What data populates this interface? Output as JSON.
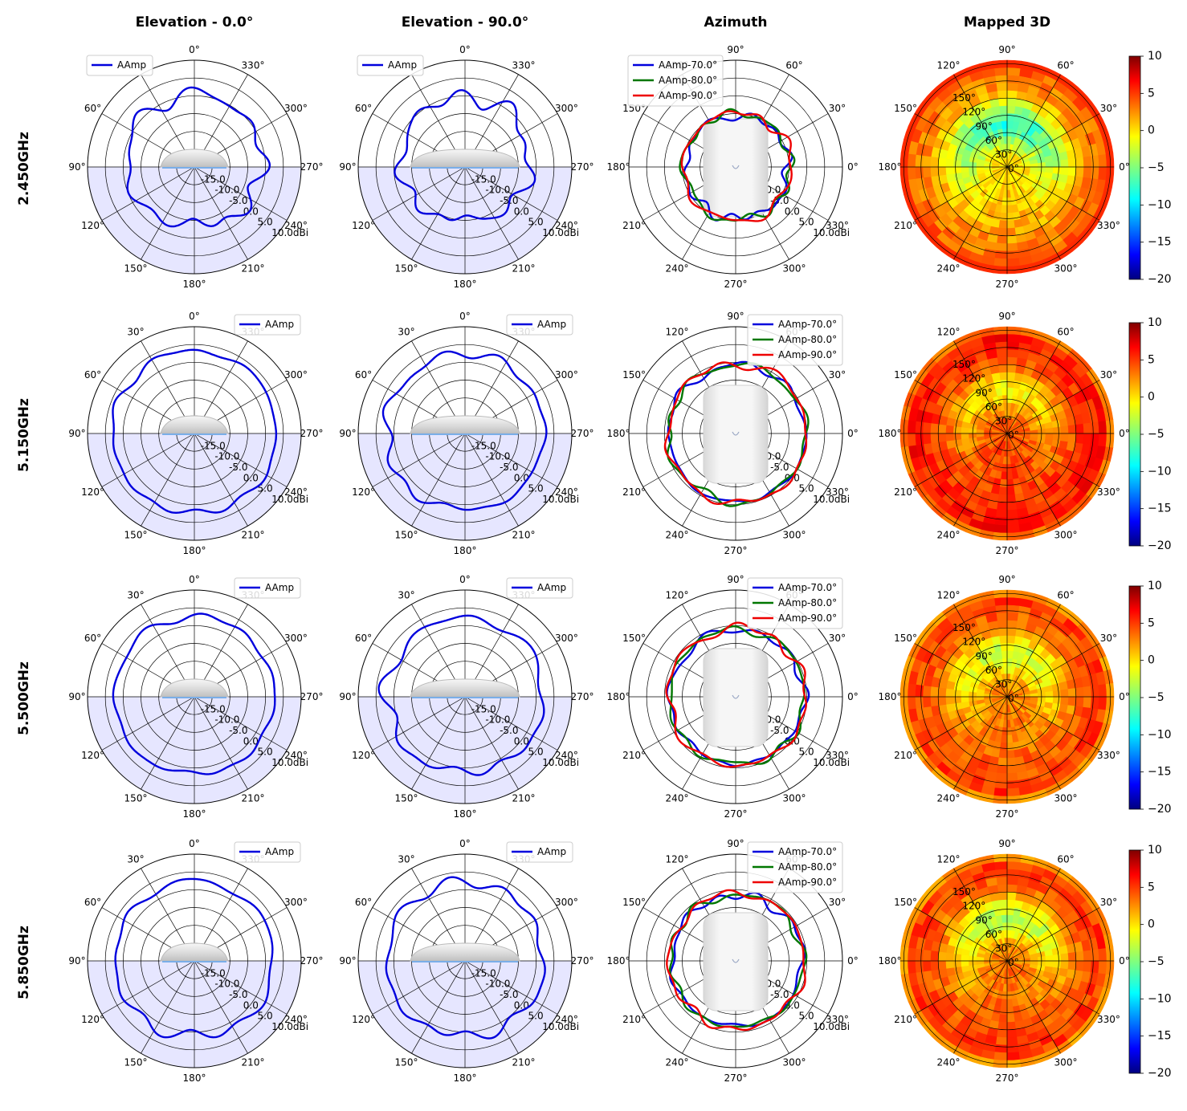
{
  "chart_data": {
    "type": "polar",
    "column_titles": [
      "Elevation - 0.0°",
      "Elevation - 90.0°",
      "Azimuth",
      "Mapped 3D"
    ],
    "row_titles": [
      "2.450GHz",
      "5.150GHz",
      "5.500GHz",
      "5.850GHz"
    ],
    "units": "dBi",
    "radial_range_dbi": [
      -20,
      10
    ],
    "radial_tick_labels": [
      "-15.0",
      "-10.0",
      "-5.0",
      "0.0",
      "5.0",
      "10.0dBi"
    ],
    "angle_tick_labels_elevation": [
      "0°",
      "30°",
      "60°",
      "90°",
      "120°",
      "150°",
      "180°",
      "210°",
      "240°",
      "270°",
      "300°",
      "330°"
    ],
    "angle_tick_labels_azimuth": [
      "0°",
      "30°",
      "60°",
      "90°",
      "120°",
      "150°",
      "180°",
      "210°",
      "240°",
      "270°",
      "300°",
      "330°"
    ],
    "elevation_series_name": "AAmp",
    "azimuth_series_names": [
      "AAmp-70.0°",
      "AAmp-80.0°",
      "AAmp-90.0°"
    ],
    "series_colors": {
      "AAmp": "#0000dd",
      "AAmp-70.0°": "#0000dd",
      "AAmp-80.0°": "#007700",
      "AAmp-90.0°": "#ee0000"
    },
    "shaded_half_color": "#e6e6ff",
    "heatmap": {
      "colormap": "jet",
      "colorbar_range": [
        -20,
        10
      ],
      "colorbar_tick_labels": [
        "10",
        "5",
        "0",
        "−5",
        "−10",
        "−15",
        "−20"
      ],
      "inner_radial_labels": [
        "150°",
        "120°",
        "90°",
        "60°",
        "30°",
        "0°"
      ]
    },
    "rows": [
      {
        "frequency": "2.450GHz",
        "elevation_0": {
          "mean_dbi": -1,
          "asymmetry_dbi": 2.5,
          "ripple_dbi": 1.6,
          "back_null_dbi": -5
        },
        "elevation_90": {
          "mean_dbi": -2,
          "asymmetry_dbi": 3,
          "ripple_dbi": 2.0,
          "back_null_dbi": -6
        },
        "azimuth": {
          "mean_dbi": [
            -5.5,
            -5.0,
            -4.8
          ],
          "ripple_dbi": 1.2
        },
        "mapped_3d": {
          "base_dbi": 0,
          "rim_dbi": 4,
          "low_spot_dbi": -9
        }
      },
      {
        "frequency": "5.150GHz",
        "elevation_0": {
          "mean_dbi": 3,
          "asymmetry_dbi": 0.5,
          "ripple_dbi": 0.8,
          "back_null_dbi": -1.5
        },
        "elevation_90": {
          "mean_dbi": 2.2,
          "asymmetry_dbi": 0.5,
          "ripple_dbi": 1.2,
          "back_null_dbi": -2
        },
        "azimuth": {
          "mean_dbi": [
            -0.8,
            -0.7,
            -0.4
          ],
          "ripple_dbi": 1.0
        },
        "mapped_3d": {
          "base_dbi": 4,
          "rim_dbi": 6,
          "low_spot_dbi": -2
        }
      },
      {
        "frequency": "5.500GHz",
        "elevation_0": {
          "mean_dbi": 2.4,
          "asymmetry_dbi": 0.4,
          "ripple_dbi": 0.9,
          "back_null_dbi": -2
        },
        "elevation_90": {
          "mean_dbi": 2.0,
          "asymmetry_dbi": 0.4,
          "ripple_dbi": 1.3,
          "back_null_dbi": -2.5
        },
        "azimuth": {
          "mean_dbi": [
            -1.2,
            -1.0,
            -0.7
          ],
          "ripple_dbi": 1.0
        },
        "mapped_3d": {
          "base_dbi": 2.5,
          "rim_dbi": 5,
          "low_spot_dbi": -4
        }
      },
      {
        "frequency": "5.850GHz",
        "elevation_0": {
          "mean_dbi": 2.2,
          "asymmetry_dbi": 0.5,
          "ripple_dbi": 0.9,
          "back_null_dbi": -3
        },
        "elevation_90": {
          "mean_dbi": 2.0,
          "asymmetry_dbi": 0.4,
          "ripple_dbi": 1.2,
          "back_null_dbi": -3
        },
        "azimuth": {
          "mean_dbi": [
            -1.6,
            -1.4,
            -1.0
          ],
          "ripple_dbi": 1.0
        },
        "mapped_3d": {
          "base_dbi": 3,
          "rim_dbi": 5,
          "low_spot_dbi": -5
        }
      }
    ]
  }
}
